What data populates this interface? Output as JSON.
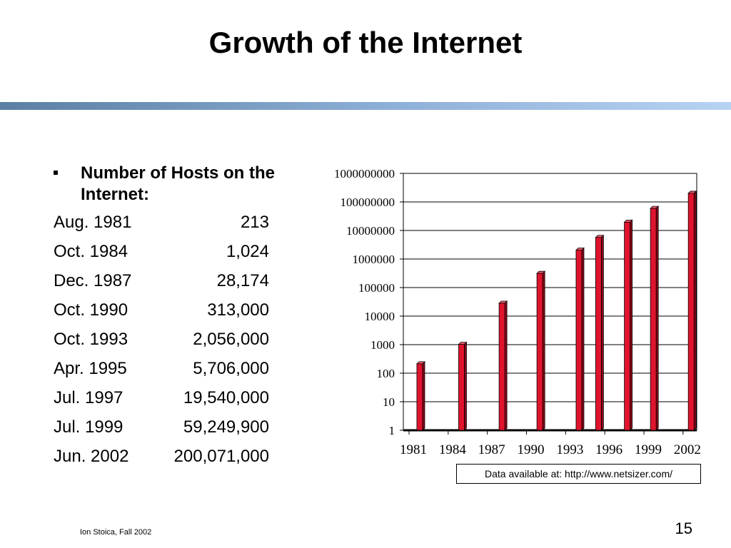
{
  "slide": {
    "title": "Growth of the Internet",
    "bullet": "Number of Hosts on the Internet:",
    "hosts": [
      {
        "date": "Aug. 1981",
        "count": "213"
      },
      {
        "date": "Oct. 1984",
        "count": "1,024"
      },
      {
        "date": "Dec. 1987",
        "count": "28,174"
      },
      {
        "date": "Oct. 1990",
        "count": "313,000"
      },
      {
        "date": "Oct. 1993",
        "count": "2,056,000"
      },
      {
        "date": "Apr. 1995",
        "count": "5,706,000"
      },
      {
        "date": "Jul. 1997",
        "count": "19,540,000"
      },
      {
        "date": "Jul. 1999",
        "count": "59,249,900"
      },
      {
        "date": "Jun. 2002",
        "count": "200,071,000"
      }
    ],
    "note": "Data available at: http://www.netsizer.com/",
    "footer": "Ion Stoica, Fall 2002",
    "page_number": "15"
  },
  "colors": {
    "bar": "#e0142d",
    "bar_dark": "#8a0a1a",
    "bar_light": "#f25b6c",
    "rule_start": "#5d7fa3",
    "rule_end": "#b7d3f2"
  },
  "chart_data": {
    "type": "bar",
    "scale": "log",
    "ylim": [
      1,
      1000000000
    ],
    "y_ticks": [
      "1",
      "10",
      "100",
      "1000",
      "10000",
      "100000",
      "1000000",
      "10000000",
      "100000000",
      "1000000000"
    ],
    "x_ticks": [
      "1981",
      "1984",
      "1987",
      "1990",
      "1993",
      "1996",
      "1999",
      "2002"
    ],
    "x_range": [
      1981,
      2002.5
    ],
    "grid": true,
    "points": [
      {
        "x": 1981.6,
        "y": 213
      },
      {
        "x": 1984.8,
        "y": 1024
      },
      {
        "x": 1987.9,
        "y": 28174
      },
      {
        "x": 1990.8,
        "y": 313000
      },
      {
        "x": 1993.8,
        "y": 2056000
      },
      {
        "x": 1995.3,
        "y": 5706000
      },
      {
        "x": 1997.5,
        "y": 19540000
      },
      {
        "x": 1999.5,
        "y": 59249900
      },
      {
        "x": 2002.4,
        "y": 200071000
      }
    ]
  }
}
